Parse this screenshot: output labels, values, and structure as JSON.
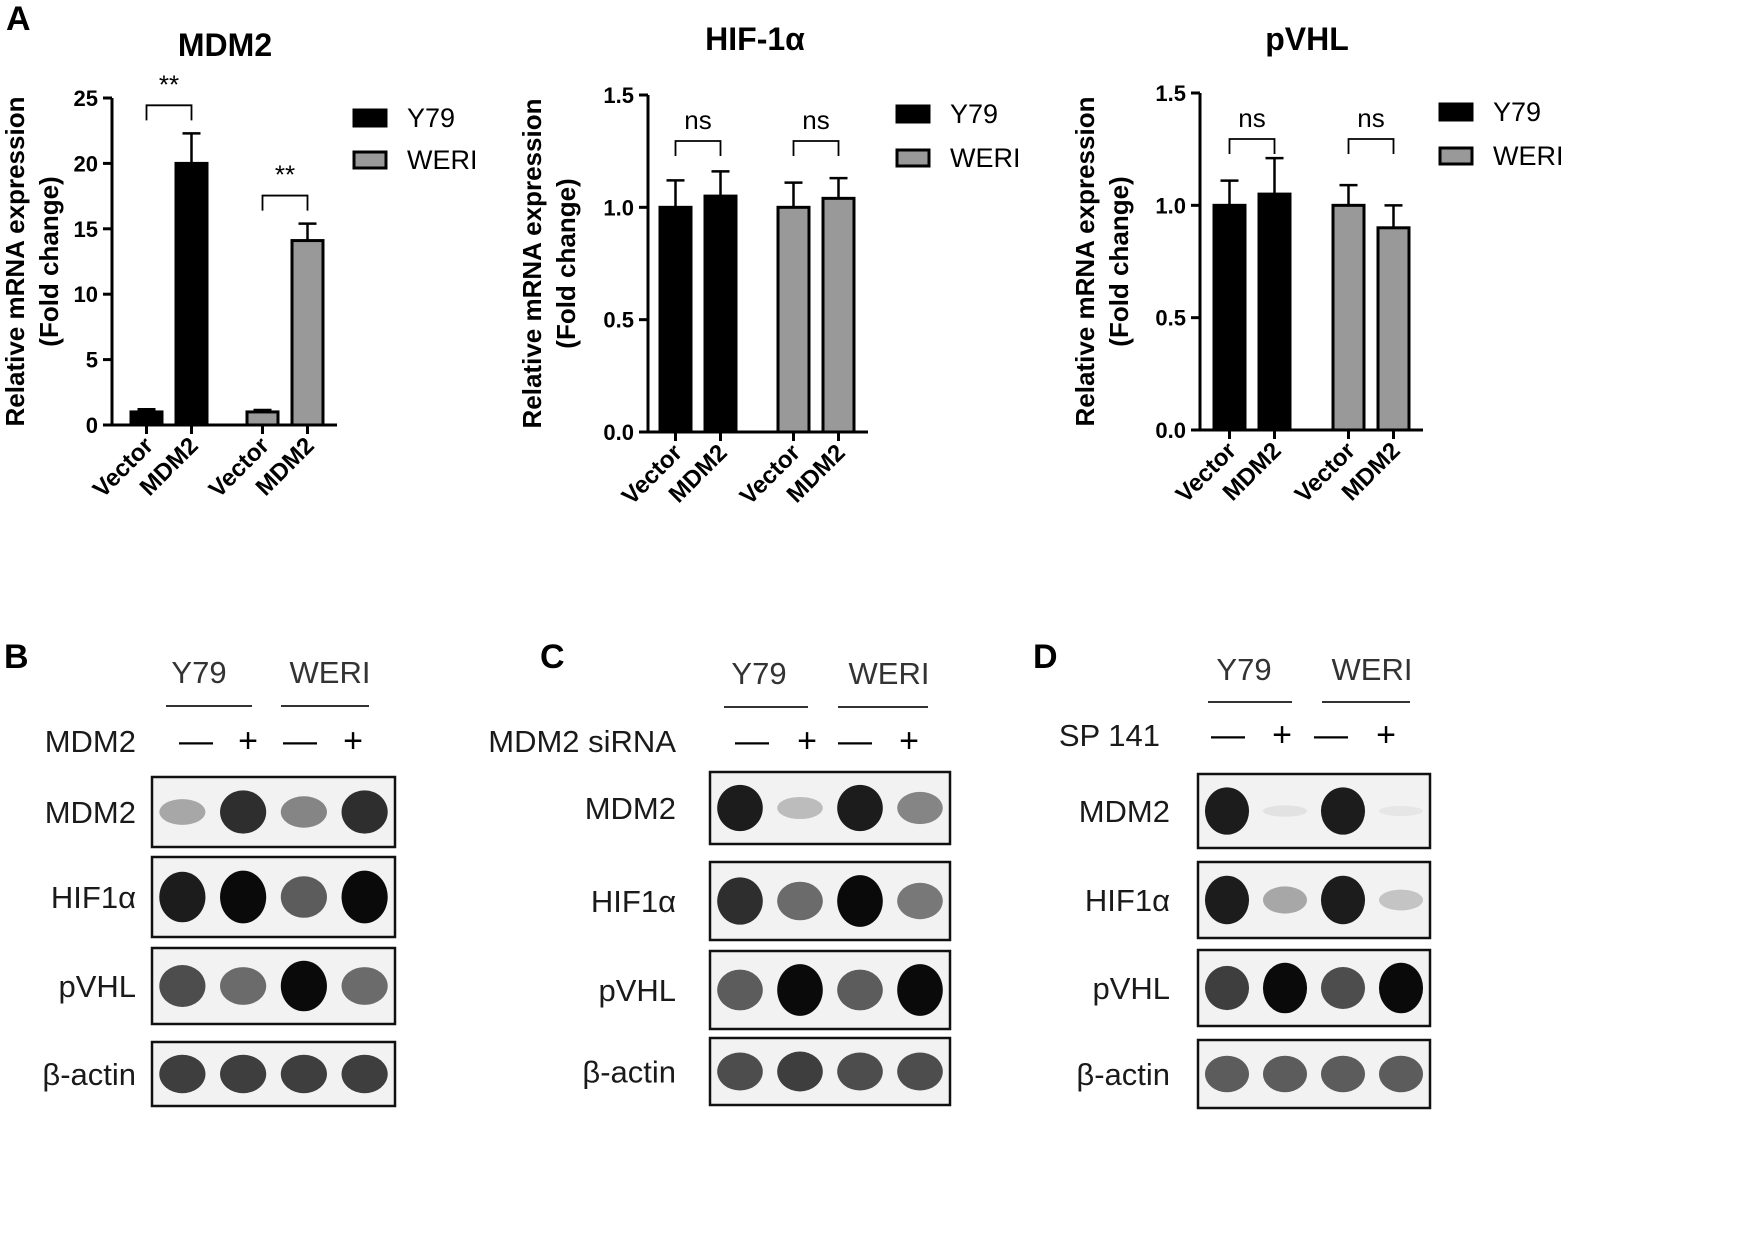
{
  "panel_a": {
    "letter": "A",
    "xlabels": [
      "Vector",
      "MDM2",
      "Vector",
      "MDM2"
    ],
    "legend": [
      "Y79",
      "WERI"
    ]
  },
  "colors": {
    "y79": "#000000",
    "weri": "#999999",
    "axis": "#000000"
  },
  "chart_data": [
    {
      "type": "bar",
      "title": "MDM2",
      "ylabel": [
        "Relative mRNA expression",
        "(Fold change)"
      ],
      "categories": [
        "Vector",
        "MDM2"
      ],
      "series": [
        {
          "name": "Y79",
          "values": [
            1.0,
            20.0
          ],
          "errors": [
            0.2,
            2.3
          ]
        },
        {
          "name": "WERI",
          "values": [
            1.0,
            14.1
          ],
          "errors": [
            0.15,
            1.3
          ]
        }
      ],
      "ylim": [
        0,
        25
      ],
      "yticks": [
        0,
        5,
        10,
        15,
        20,
        25
      ],
      "significance": [
        "**",
        "**"
      ],
      "legend": "right"
    },
    {
      "type": "bar",
      "title": "HIF-1α",
      "ylabel": [
        "Relative mRNA expression",
        "(Fold change)"
      ],
      "categories": [
        "Vector",
        "MDM2"
      ],
      "series": [
        {
          "name": "Y79",
          "values": [
            1.0,
            1.05
          ],
          "errors": [
            0.12,
            0.11
          ]
        },
        {
          "name": "WERI",
          "values": [
            1.0,
            1.04
          ],
          "errors": [
            0.11,
            0.09
          ]
        }
      ],
      "ylim": [
        0,
        1.5
      ],
      "yticks": [
        "0.0",
        "0.5",
        "1.0",
        "1.5"
      ],
      "significance": [
        "ns",
        "ns"
      ],
      "legend": "right"
    },
    {
      "type": "bar",
      "title": "pVHL",
      "ylabel": [
        "Relative mRNA expression",
        "(Fold change)"
      ],
      "categories": [
        "Vector",
        "MDM2"
      ],
      "series": [
        {
          "name": "Y79",
          "values": [
            1.0,
            1.05
          ],
          "errors": [
            0.11,
            0.16
          ]
        },
        {
          "name": "WERI",
          "values": [
            1.0,
            0.9
          ],
          "errors": [
            0.09,
            0.1
          ]
        }
      ],
      "ylim": [
        0,
        1.5
      ],
      "yticks": [
        "0.0",
        "0.5",
        "1.0",
        "1.5"
      ],
      "significance": [
        "ns",
        "ns"
      ],
      "legend": "right"
    }
  ],
  "blots": [
    {
      "letter": "B",
      "groups": [
        "Y79",
        "WERI"
      ],
      "treatment": "MDM2",
      "signs": [
        "—",
        "+",
        "—",
        "+"
      ],
      "rows": [
        {
          "label": "MDM2",
          "intensity": [
            0.45,
            0.9,
            0.6,
            0.9
          ]
        },
        {
          "label": "HIF1α",
          "intensity": [
            0.95,
            1.0,
            0.75,
            1.0
          ]
        },
        {
          "label": "pVHL",
          "intensity": [
            0.8,
            0.7,
            1.0,
            0.7
          ]
        },
        {
          "label": "β-actin",
          "intensity": [
            0.85,
            0.85,
            0.85,
            0.85
          ]
        }
      ]
    },
    {
      "letter": "C",
      "groups": [
        "Y79",
        "WERI"
      ],
      "treatment": "MDM2 siRNA",
      "signs": [
        "—",
        "+",
        "—",
        "+"
      ],
      "rows": [
        {
          "label": "MDM2",
          "intensity": [
            0.95,
            0.35,
            0.95,
            0.6
          ]
        },
        {
          "label": "HIF1α",
          "intensity": [
            0.9,
            0.7,
            1.0,
            0.65
          ]
        },
        {
          "label": "pVHL",
          "intensity": [
            0.75,
            1.0,
            0.75,
            1.0
          ]
        },
        {
          "label": "β-actin",
          "intensity": [
            0.8,
            0.85,
            0.8,
            0.8
          ]
        }
      ]
    },
    {
      "letter": "D",
      "groups": [
        "Y79",
        "WERI"
      ],
      "treatment": "SP 141",
      "signs": [
        "—",
        "+",
        "—",
        "+"
      ],
      "rows": [
        {
          "label": "MDM2",
          "intensity": [
            0.95,
            0.08,
            0.95,
            0.05
          ]
        },
        {
          "label": "HIF1α",
          "intensity": [
            0.95,
            0.45,
            0.95,
            0.3
          ]
        },
        {
          "label": "pVHL",
          "intensity": [
            0.85,
            1.0,
            0.8,
            1.0
          ]
        },
        {
          "label": "β-actin",
          "intensity": [
            0.75,
            0.75,
            0.75,
            0.75
          ]
        }
      ]
    }
  ]
}
